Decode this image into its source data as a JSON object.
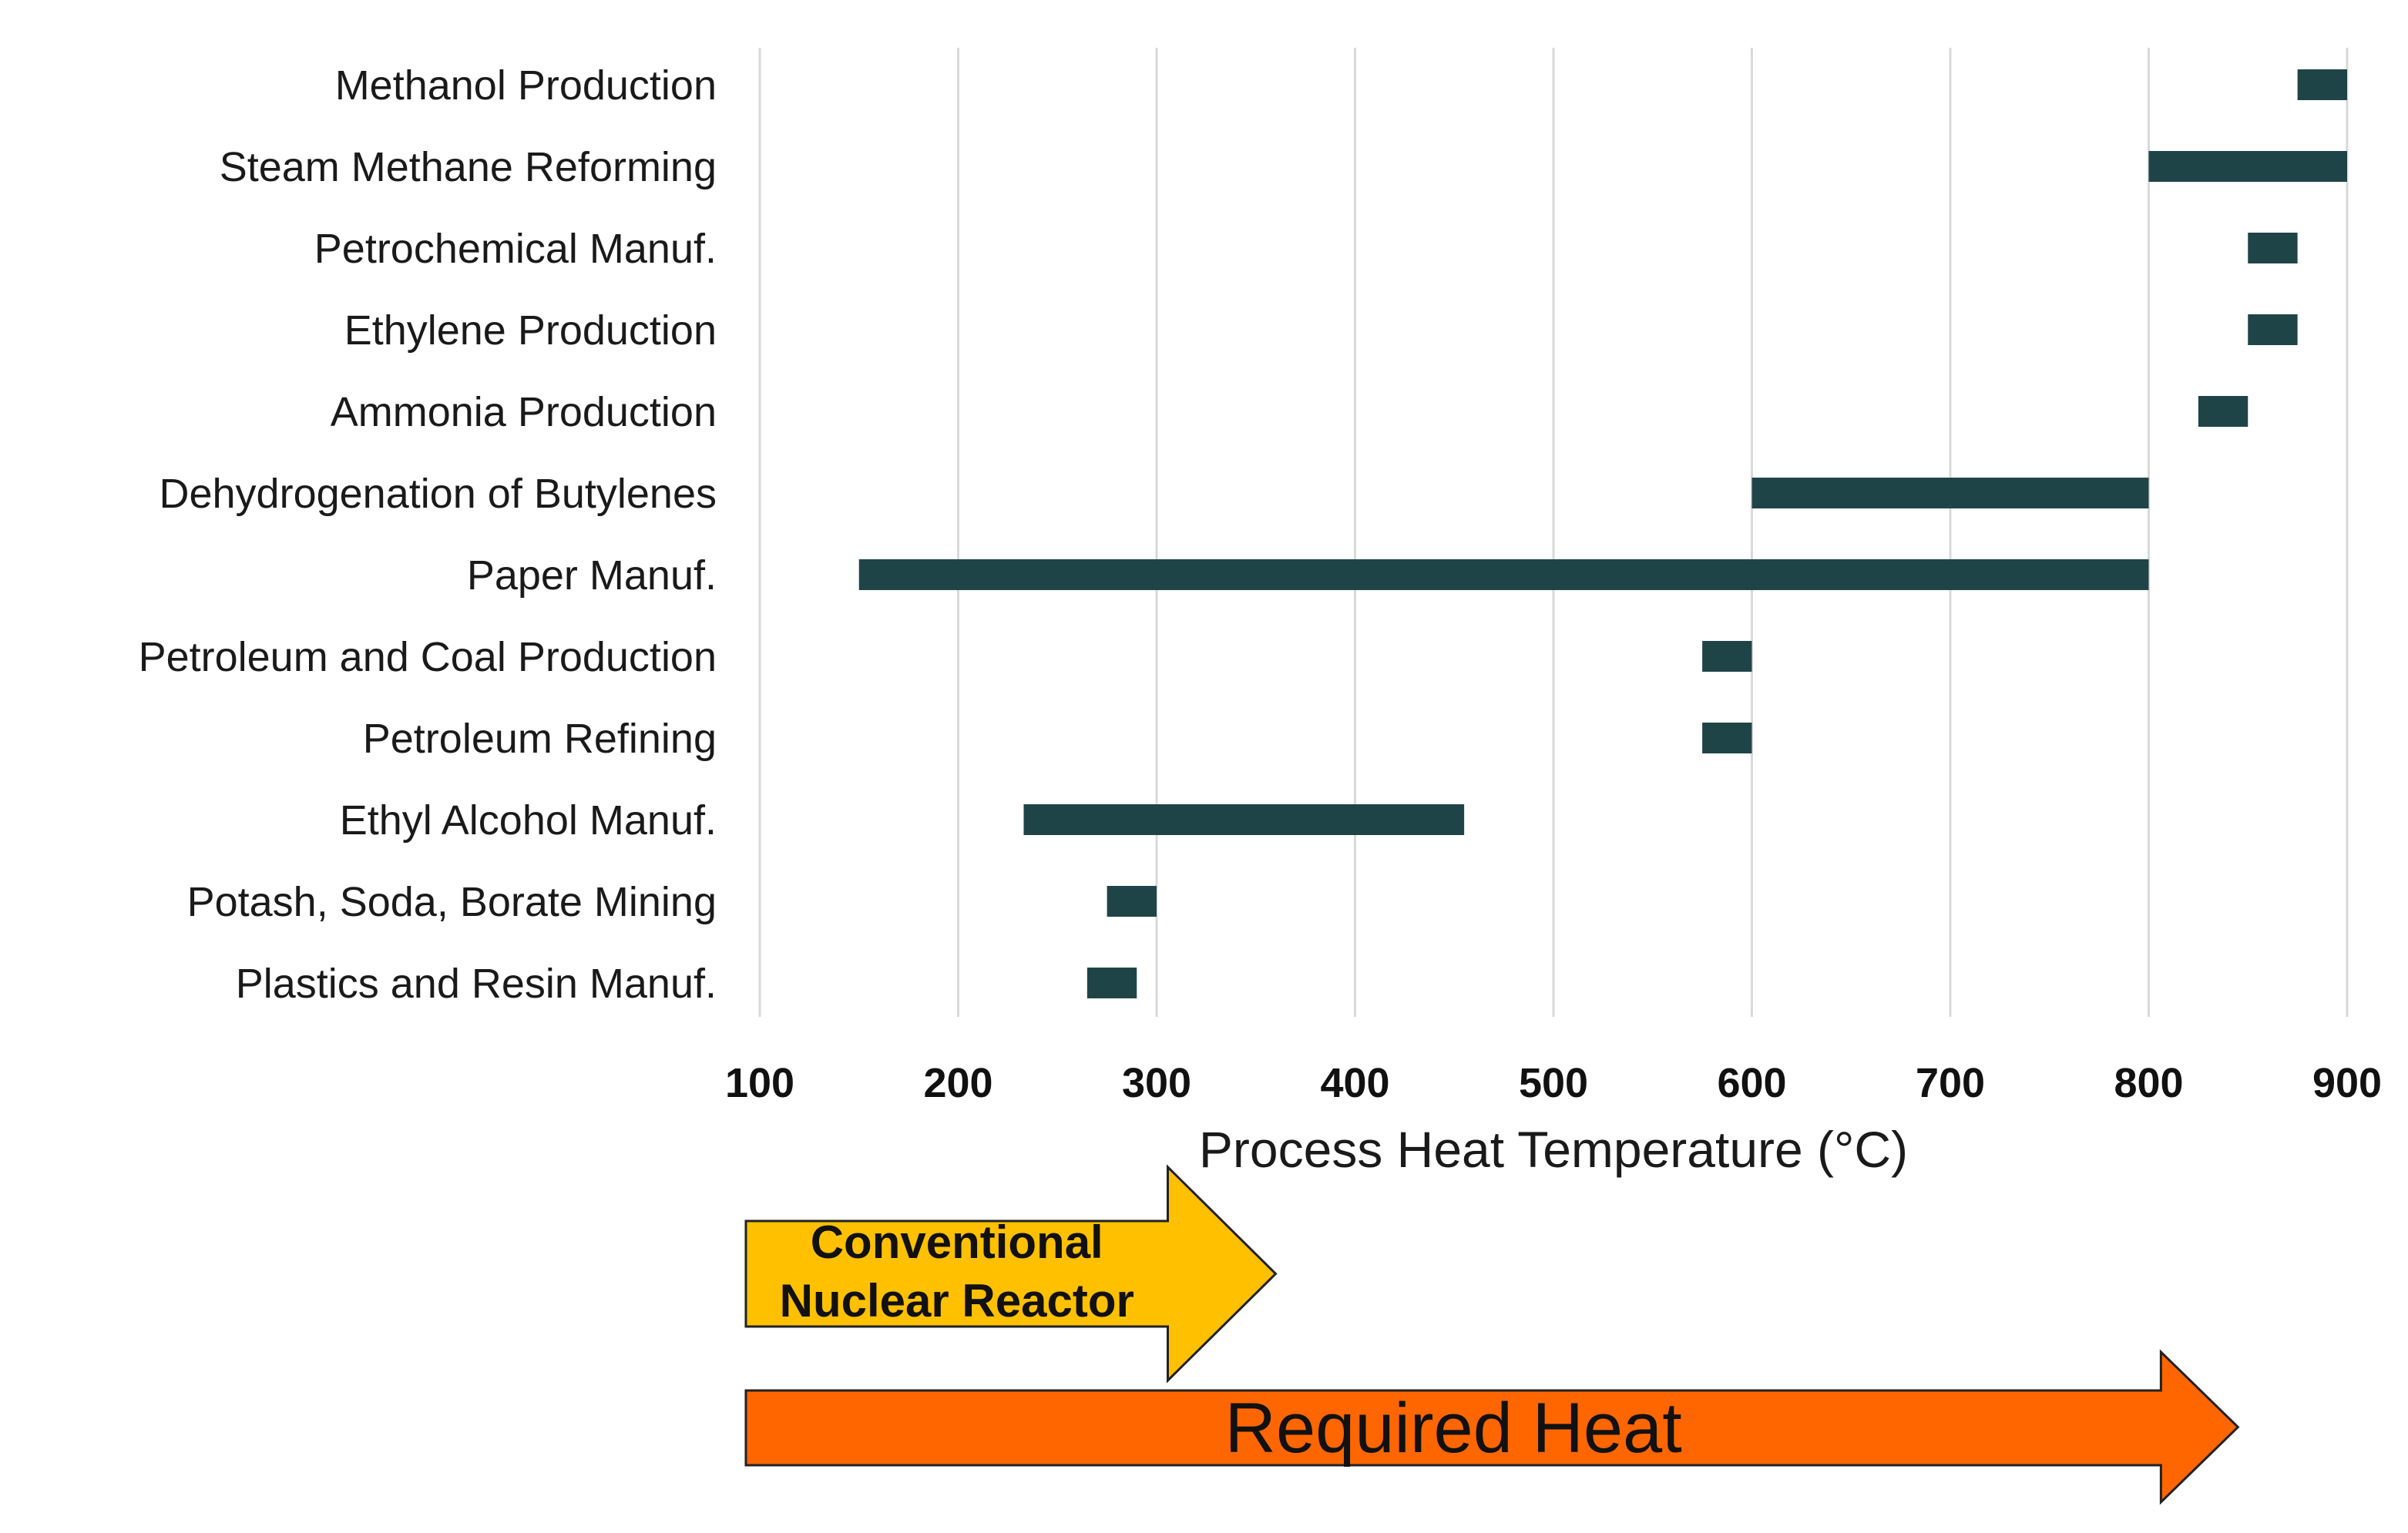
{
  "chart_data": {
    "type": "bar",
    "orientation": "horizontal-range",
    "title": "",
    "xlabel": "Process Heat Temperature (°C)",
    "ylabel": "",
    "xlim": [
      100,
      900
    ],
    "xticks": [
      100,
      200,
      300,
      400,
      500,
      600,
      700,
      800,
      900
    ],
    "grid": "vertical",
    "categories": [
      "Methanol Production",
      "Steam Methane Reforming",
      "Petrochemical Manuf.",
      "Ethylene Production",
      "Ammonia Production",
      "Dehydrogenation of Butylenes",
      "Paper Manuf.",
      "Petroleum and Coal Production",
      "Petroleum Refining",
      "Ethyl Alcohol Manuf.",
      "Potash, Soda, Borate Mining",
      "Plastics and Resin Manuf."
    ],
    "ranges": [
      [
        875,
        900
      ],
      [
        800,
        900
      ],
      [
        850,
        875
      ],
      [
        850,
        875
      ],
      [
        825,
        850
      ],
      [
        600,
        800
      ],
      [
        150,
        800
      ],
      [
        575,
        600
      ],
      [
        575,
        600
      ],
      [
        233,
        455
      ],
      [
        275,
        300
      ],
      [
        265,
        290
      ]
    ],
    "bar_color": "#1f4447",
    "annotations": [
      {
        "lines": [
          "Conventional",
          "Nuclear Reactor"
        ],
        "from": 93,
        "to": 360,
        "color": "#ffc000"
      },
      {
        "lines": [
          "Required Heat"
        ],
        "from": 93,
        "to": 845,
        "color": "#ff6600"
      }
    ]
  }
}
